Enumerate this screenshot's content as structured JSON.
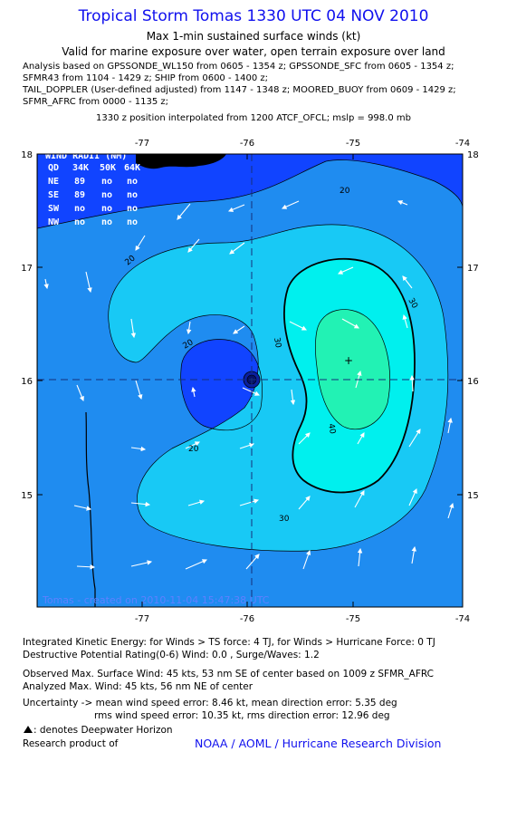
{
  "header": {
    "title": "Tropical Storm Tomas 1330 UTC 04 NOV 2010",
    "subtitle": "Max 1-min sustained surface winds (kt)",
    "validity": "Valid for marine exposure over water, open terrain exposure over land",
    "analysis_lines": [
      "Analysis based on GPSSONDE_WL150 from 0605 - 1354 z; GPSSONDE_SFC from 0605 - 1354 z;",
      "SFMR43 from 1104 - 1429 z; SHIP from 0600 - 1400 z;",
      "TAIL_DOPPLER (User-defined adjusted) from 1147 - 1348 z; MOORED_BUOY from 0609 - 1429 z;",
      "SFMR_AFRC from 0000 - 1135 z;"
    ],
    "position_note": "1330 z position interpolated from 1200 ATCF_OFCL; mslp = 998.0 mb"
  },
  "map": {
    "lon_ticks": [
      "-77",
      "-76",
      "-75",
      "-74"
    ],
    "lat_ticks": [
      "18",
      "17",
      "16",
      "15"
    ],
    "contour_labels": [
      "20",
      "20",
      "20",
      "20",
      "30",
      "30",
      "30",
      "40"
    ],
    "wind_radii": {
      "title": "WIND RADII (NM)",
      "header": [
        "QD",
        "34K",
        "50K",
        "64K"
      ],
      "rows": [
        [
          "NE",
          "89",
          "no",
          "no"
        ],
        [
          "SE",
          "89",
          "no",
          "no"
        ],
        [
          "SW",
          "no",
          "no",
          "no"
        ],
        [
          "NW",
          "no",
          "no",
          "no"
        ]
      ]
    },
    "credit": "Tomas - created on 2010-11-04 15:47:38 UTC",
    "colors": {
      "lt20": "#1144ff",
      "20to30": "#1f8cf0",
      "30to40": "#18c9f5",
      "40to50": "#00f0ee",
      "gt50": "#22f2b4",
      "land": "#000000",
      "arrows": "#ffffff"
    }
  },
  "chart_data": {
    "type": "heatmap",
    "title": "Tropical Storm Tomas 1330 UTC 04 NOV 2010",
    "variable": "Max 1-min sustained surface winds (kt)",
    "xlim": [
      -77.95,
      -74
    ],
    "ylim": [
      14,
      18
    ],
    "x_ticks": [
      -77,
      -76,
      -75,
      -74
    ],
    "y_ticks": [
      18,
      17,
      16,
      15
    ],
    "contour_levels_kt": [
      20,
      30,
      40,
      50
    ],
    "storm_center": {
      "lon": -76,
      "lat": 16
    },
    "max_wind_location": {
      "lon": -75,
      "lat": 16.2
    }
  },
  "footer": {
    "ike": "Integrated Kinetic Energy:  for Winds > TS force: 4 TJ,  for Winds > Hurricane Force: 0 TJ",
    "dpr": "Destructive Potential Rating(0-6)   Wind: 0.0 , Surge/Waves: 1.2",
    "observed": "Observed Max. Surface Wind: 45 kts, 53 nm SE of center based on 1009 z SFMR_AFRC",
    "analyzed": "Analyzed Max. Wind: 45 kts, 56 nm NE of center",
    "uncertainty": "Uncertainty -> mean wind speed error: 8.46 kt,   mean direction error: 5.35 deg",
    "rms": "rms wind speed error: 10.35 kt,   rms direction error: 12.96 deg",
    "legend": ": denotes Deepwater Horizon",
    "credit_prefix": "Research product of",
    "credit_link": "NOAA / AOML / Hurricane Research Division"
  }
}
